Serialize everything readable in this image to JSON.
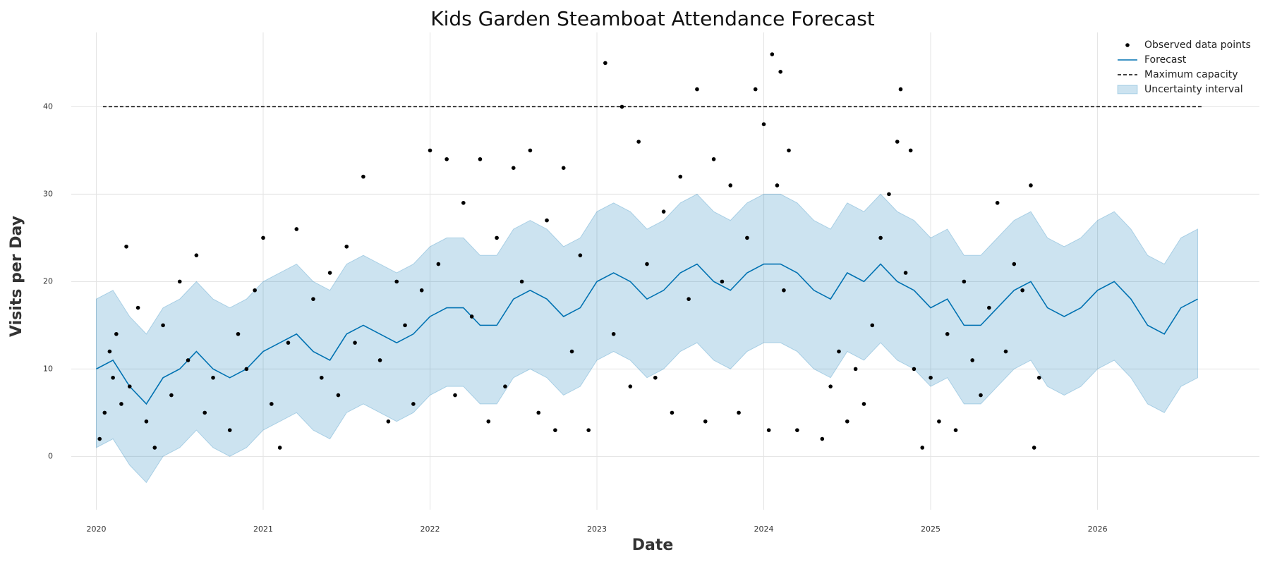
{
  "chart_data": {
    "type": "forecast",
    "title": "Kids Garden Steamboat Attendance Forecast",
    "x_label": "Date",
    "y_label": "Visits per Day",
    "xlim": [
      2019.85,
      2026.97
    ],
    "ylim": [
      -6.1,
      48.5
    ],
    "xticks": [
      2020,
      2021,
      2022,
      2023,
      2024,
      2025,
      2026
    ],
    "yticks": [
      0,
      10,
      20,
      30,
      40
    ],
    "grid": true,
    "legend": "upper right",
    "series": [
      {
        "name": "Observed data points",
        "type": "scatter",
        "color": "#000000",
        "x": [
          2020.02,
          2020.05,
          2020.08,
          2020.1,
          2020.12,
          2020.15,
          2020.18,
          2020.2,
          2020.25,
          2020.3,
          2020.35,
          2020.4,
          2020.45,
          2020.5,
          2020.55,
          2020.6,
          2020.65,
          2020.7,
          2020.8,
          2020.85,
          2020.9,
          2020.95,
          2021.0,
          2021.05,
          2021.1,
          2021.15,
          2021.2,
          2021.3,
          2021.35,
          2021.4,
          2021.45,
          2021.5,
          2021.55,
          2021.6,
          2021.7,
          2021.75,
          2021.8,
          2021.85,
          2021.9,
          2021.95,
          2022.0,
          2022.05,
          2022.1,
          2022.15,
          2022.2,
          2022.25,
          2022.3,
          2022.35,
          2022.4,
          2022.45,
          2022.5,
          2022.55,
          2022.6,
          2022.65,
          2022.7,
          2022.75,
          2022.8,
          2022.85,
          2022.9,
          2022.95,
          2023.05,
          2023.1,
          2023.15,
          2023.2,
          2023.25,
          2023.3,
          2023.35,
          2023.4,
          2023.45,
          2023.5,
          2023.55,
          2023.6,
          2023.65,
          2023.7,
          2023.75,
          2023.8,
          2023.85,
          2023.9,
          2023.95,
          2024.0,
          2024.03,
          2024.05,
          2024.08,
          2024.1,
          2024.12,
          2024.15,
          2024.2,
          2024.35,
          2024.4,
          2024.45,
          2024.5,
          2024.55,
          2024.6,
          2024.65,
          2024.7,
          2024.75,
          2024.8,
          2024.82,
          2024.85,
          2024.88,
          2024.9,
          2024.95,
          2025.0,
          2025.05,
          2025.1,
          2025.15,
          2025.2,
          2025.25,
          2025.3,
          2025.35,
          2025.4,
          2025.45,
          2025.5,
          2025.55,
          2025.6,
          2025.62,
          2025.65
        ],
        "values": [
          2,
          5,
          12,
          9,
          14,
          6,
          24,
          8,
          17,
          4,
          1,
          15,
          7,
          20,
          11,
          23,
          5,
          9,
          3,
          14,
          10,
          19,
          25,
          6,
          1,
          13,
          26,
          18,
          9,
          21,
          7,
          24,
          13,
          32,
          11,
          4,
          20,
          15,
          6,
          19,
          35,
          22,
          34,
          7,
          29,
          16,
          34,
          4,
          25,
          8,
          33,
          20,
          35,
          5,
          27,
          3,
          33,
          12,
          23,
          3,
          45,
          14,
          40,
          8,
          36,
          22,
          9,
          28,
          5,
          32,
          18,
          42,
          4,
          34,
          20,
          31,
          5,
          25,
          42,
          38,
          3,
          46,
          31,
          44,
          19,
          35,
          3,
          2,
          8,
          12,
          4,
          10,
          6,
          15,
          25,
          30,
          36,
          42,
          21,
          35,
          10,
          1,
          9,
          4,
          14,
          3,
          20,
          11,
          7,
          17,
          29,
          12,
          22,
          19,
          31,
          1,
          9
        ]
      },
      {
        "name": "Forecast",
        "type": "line",
        "color": "#0072b2",
        "x": [
          2020.0,
          2020.1,
          2020.2,
          2020.3,
          2020.4,
          2020.5,
          2020.6,
          2020.7,
          2020.8,
          2020.9,
          2021.0,
          2021.1,
          2021.2,
          2021.3,
          2021.4,
          2021.5,
          2021.6,
          2021.7,
          2021.8,
          2021.9,
          2022.0,
          2022.1,
          2022.2,
          2022.3,
          2022.4,
          2022.5,
          2022.6,
          2022.7,
          2022.8,
          2022.9,
          2023.0,
          2023.1,
          2023.2,
          2023.3,
          2023.4,
          2023.5,
          2023.6,
          2023.7,
          2023.8,
          2023.9,
          2024.0,
          2024.1,
          2024.2,
          2024.3,
          2024.4,
          2024.5,
          2024.6,
          2024.7,
          2024.8,
          2024.9,
          2025.0,
          2025.1,
          2025.2,
          2025.3,
          2025.4,
          2025.5,
          2025.6,
          2025.7,
          2025.8,
          2025.9,
          2026.0,
          2026.1,
          2026.2,
          2026.3,
          2026.4,
          2026.5,
          2026.6
        ],
        "values": [
          10,
          11,
          8,
          6,
          9,
          10,
          12,
          10,
          9,
          10,
          12,
          13,
          14,
          12,
          11,
          14,
          15,
          14,
          13,
          14,
          16,
          17,
          17,
          15,
          15,
          18,
          19,
          18,
          16,
          17,
          20,
          21,
          20,
          18,
          19,
          21,
          22,
          20,
          19,
          21,
          22,
          22,
          21,
          19,
          18,
          21,
          20,
          22,
          20,
          19,
          17,
          18,
          15,
          15,
          17,
          19,
          20,
          17,
          16,
          17,
          19,
          20,
          18,
          15,
          14,
          17,
          18
        ]
      },
      {
        "name": "Maximum capacity",
        "type": "dashed",
        "color": "#000000",
        "x": [
          2020.04,
          2026.63
        ],
        "values": [
          40,
          40
        ]
      },
      {
        "name": "Uncertainty interval",
        "type": "band",
        "color": "#0072b2",
        "x": [
          2020.0,
          2020.1,
          2020.2,
          2020.3,
          2020.4,
          2020.5,
          2020.6,
          2020.7,
          2020.8,
          2020.9,
          2021.0,
          2021.1,
          2021.2,
          2021.3,
          2021.4,
          2021.5,
          2021.6,
          2021.7,
          2021.8,
          2021.9,
          2022.0,
          2022.1,
          2022.2,
          2022.3,
          2022.4,
          2022.5,
          2022.6,
          2022.7,
          2022.8,
          2022.9,
          2023.0,
          2023.1,
          2023.2,
          2023.3,
          2023.4,
          2023.5,
          2023.6,
          2023.7,
          2023.8,
          2023.9,
          2024.0,
          2024.1,
          2024.2,
          2024.3,
          2024.4,
          2024.5,
          2024.6,
          2024.7,
          2024.8,
          2024.9,
          2025.0,
          2025.1,
          2025.2,
          2025.3,
          2025.4,
          2025.5,
          2025.6,
          2025.7,
          2025.8,
          2025.9,
          2026.0,
          2026.1,
          2026.2,
          2026.3,
          2026.4,
          2026.5,
          2026.6
        ],
        "lower": [
          1,
          2,
          -1,
          -3,
          0,
          1,
          3,
          1,
          0,
          1,
          3,
          4,
          5,
          3,
          2,
          5,
          6,
          5,
          4,
          5,
          7,
          8,
          8,
          6,
          6,
          9,
          10,
          9,
          7,
          8,
          11,
          12,
          11,
          9,
          10,
          12,
          13,
          11,
          10,
          12,
          13,
          13,
          12,
          10,
          9,
          12,
          11,
          13,
          11,
          10,
          8,
          9,
          6,
          6,
          8,
          10,
          11,
          8,
          7,
          8,
          10,
          11,
          9,
          6,
          5,
          8,
          9
        ],
        "upper": [
          18,
          19,
          16,
          14,
          17,
          18,
          20,
          18,
          17,
          18,
          20,
          21,
          22,
          20,
          19,
          22,
          23,
          22,
          21,
          22,
          24,
          25,
          25,
          23,
          23,
          26,
          27,
          26,
          24,
          25,
          28,
          29,
          28,
          26,
          27,
          29,
          30,
          28,
          27,
          29,
          30,
          30,
          29,
          27,
          26,
          29,
          28,
          30,
          28,
          27,
          25,
          26,
          23,
          23,
          25,
          27,
          28,
          25,
          24,
          25,
          27,
          28,
          26,
          23,
          22,
          25,
          26
        ]
      }
    ]
  }
}
